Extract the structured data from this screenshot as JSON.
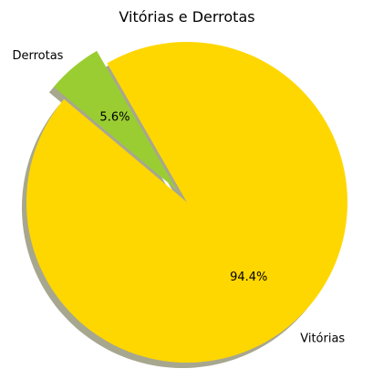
{
  "chart_data": {
    "type": "pie",
    "title": "Vitórias e Derrotas",
    "categories": [
      "Vitórias",
      "Derrotas"
    ],
    "values": [
      94.4,
      5.6
    ],
    "percent_labels": [
      "94.4%",
      "5.6%"
    ],
    "colors": [
      "#FFD700",
      "#9ACD32"
    ],
    "exploded": [
      false,
      true
    ],
    "shadow": true,
    "start_angle_deg": 140,
    "legend": "none"
  }
}
